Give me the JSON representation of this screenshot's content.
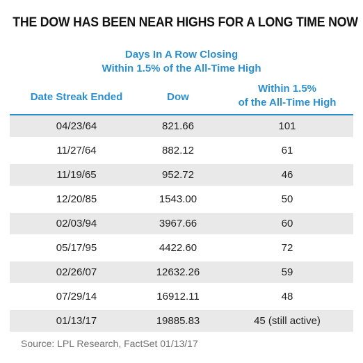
{
  "title": "THE DOW HAS BEEN NEAR HIGHS FOR A LONG TIME NOW",
  "subtitle_lines": [
    "Days In A Row Closing",
    "Within 1.5% of the All-Time High"
  ],
  "colors": {
    "accent": "#2a8fd0",
    "row_shade": "#e9e9e9",
    "text": "#1e1e1e",
    "source": "#6f6f6f"
  },
  "chart_data": {
    "type": "table",
    "columns": [
      "Date Streak Ended",
      "Dow",
      "Within 1.5%\nof the All-Time High"
    ],
    "column_lines": [
      [
        "Date Streak Ended"
      ],
      [
        "Dow"
      ],
      [
        "Within 1.5%",
        "of the All-Time High"
      ]
    ],
    "rows": [
      [
        "04/23/64",
        "821.66",
        "101"
      ],
      [
        "11/27/64",
        "882.12",
        "61"
      ],
      [
        "11/19/65",
        "952.72",
        "46"
      ],
      [
        "12/20/85",
        "1543.00",
        "50"
      ],
      [
        "02/03/94",
        "3967.66",
        "60"
      ],
      [
        "05/17/95",
        "4422.60",
        "72"
      ],
      [
        "02/26/07",
        "12632.26",
        "59"
      ],
      [
        "07/29/14",
        "16912.11",
        "48"
      ],
      [
        "01/13/17",
        "19885.83",
        "45 (still active)"
      ]
    ]
  },
  "source": "Source: LPL Research, FactSet   01/13/17"
}
